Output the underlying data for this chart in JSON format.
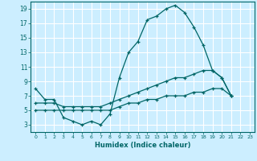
{
  "title": "",
  "xlabel": "Humidex (Indice chaleur)",
  "bg_color": "#cceeff",
  "grid_color": "#ffffff",
  "line_color": "#006666",
  "xlim": [
    -0.5,
    23.5
  ],
  "ylim": [
    2.0,
    20.0
  ],
  "xticks": [
    0,
    1,
    2,
    3,
    4,
    5,
    6,
    7,
    8,
    9,
    10,
    11,
    12,
    13,
    14,
    15,
    16,
    17,
    18,
    19,
    20,
    21,
    22,
    23
  ],
  "yticks": [
    3,
    5,
    7,
    9,
    11,
    13,
    15,
    17,
    19
  ],
  "line1_y": [
    8,
    6.5,
    6.5,
    4,
    3.5,
    3.0,
    3.5,
    3.0,
    4.5,
    9.5,
    13.0,
    14.5,
    17.5,
    18.0,
    19.0,
    19.5,
    18.5,
    16.5,
    14.0,
    10.5,
    9.5,
    7.0
  ],
  "line2_y": [
    6.0,
    6.0,
    6.0,
    5.5,
    5.5,
    5.5,
    5.5,
    5.5,
    6.0,
    6.5,
    7.0,
    7.5,
    8.0,
    8.5,
    9.0,
    9.5,
    9.5,
    10.0,
    10.5,
    10.5,
    9.5,
    7.0
  ],
  "line3_y": [
    5.0,
    5.0,
    5.0,
    5.0,
    5.0,
    5.0,
    5.0,
    5.0,
    5.0,
    5.5,
    6.0,
    6.0,
    6.5,
    6.5,
    7.0,
    7.0,
    7.0,
    7.5,
    7.5,
    8.0,
    8.0,
    7.0
  ]
}
